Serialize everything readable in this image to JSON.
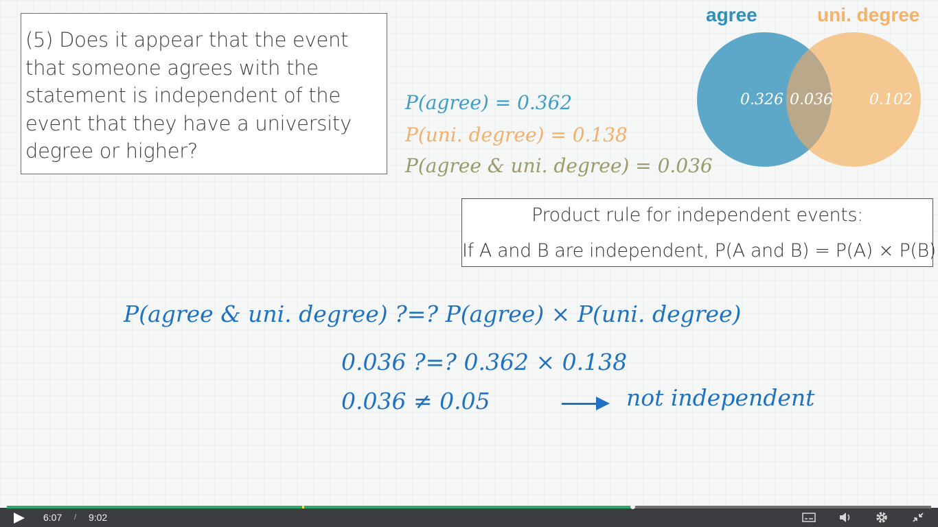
{
  "question": {
    "lines": [
      "(5) Does it appear that the event",
      "that someone agrees with the",
      "statement is independent of the",
      "event that they have a university",
      "degree or higher?"
    ]
  },
  "probabilities": {
    "agree": "P(agree) = 0.362",
    "uni_degree": "P(uni. degree) = 0.138",
    "both": "P(agree & uni. degree) = 0.036"
  },
  "venn": {
    "label_agree": "agree",
    "label_uni": "uni. degree",
    "only_agree": "0.326",
    "intersection": "0.036",
    "only_uni": "0.102",
    "colors": {
      "agree": "#5da8c8",
      "uni": "#f6c891",
      "overlap": "#b9a98a"
    }
  },
  "rule": {
    "title": "Product rule for independent events:",
    "body": "If A and B are independent, P(A and B) = P(A) × P(B)"
  },
  "work": {
    "line1": "P(agree & uni. degree) ?=? P(agree) × P(uni. degree)",
    "line2": "0.036 ?=? 0.362 × 0.138",
    "line3": "0.036  ≠  0.05",
    "conclusion": "not independent"
  },
  "player": {
    "current_time": "6:07",
    "separator": "/",
    "total_time": "9:02",
    "progress_fraction": 0.677,
    "icons": [
      "play-icon",
      "captions-icon",
      "volume-icon",
      "settings-icon",
      "exit-fullscreen-icon"
    ]
  }
}
